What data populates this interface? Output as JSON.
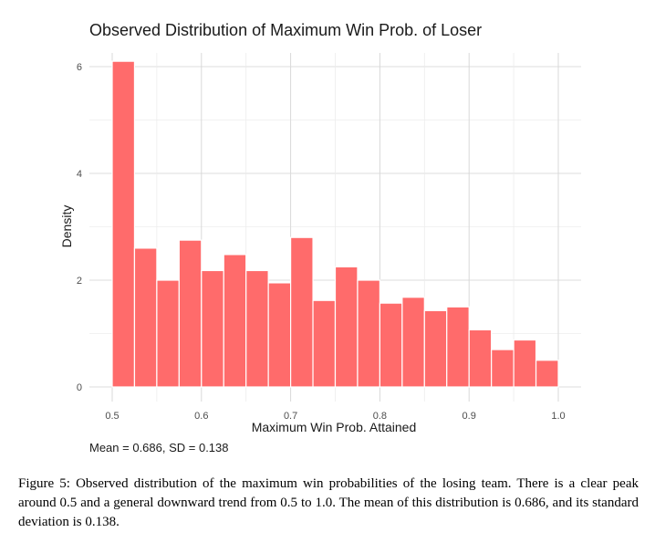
{
  "chart_data": {
    "type": "bar",
    "title": "Observed Distribution of Maximum Win Prob. of Loser",
    "xlabel": "Maximum Win Prob. Attained",
    "ylabel": "Density",
    "xlim": [
      0.5,
      1.0
    ],
    "ylim": [
      0,
      6.1
    ],
    "x_ticks": [
      "0.5",
      "0.6",
      "0.7",
      "0.8",
      "0.9",
      "1.0"
    ],
    "y_ticks": [
      "0",
      "2",
      "4",
      "6"
    ],
    "bin_edges": [
      0.5,
      0.525,
      0.55,
      0.575,
      0.6,
      0.625,
      0.65,
      0.675,
      0.7,
      0.725,
      0.75,
      0.775,
      0.8,
      0.825,
      0.85,
      0.875,
      0.9,
      0.925,
      0.95,
      0.975,
      1.0
    ],
    "values": [
      6.1,
      2.6,
      2.0,
      2.75,
      2.18,
      2.48,
      2.18,
      1.95,
      2.8,
      1.62,
      2.25,
      2.0,
      1.57,
      1.68,
      1.43,
      1.5,
      1.07,
      0.7,
      0.88,
      0.5
    ],
    "grid": true,
    "bar_color": "#ff6b6b",
    "bar_edge_color": "#ffffff",
    "annotation": "Mean = 0.686, SD = 0.138"
  },
  "caption": "Figure 5: Observed distribution of the maximum win probabilities of the losing team. There is a clear peak around 0.5 and a general downward trend from 0.5 to 1.0. The mean of this distribution is 0.686, and its standard deviation is 0.138."
}
